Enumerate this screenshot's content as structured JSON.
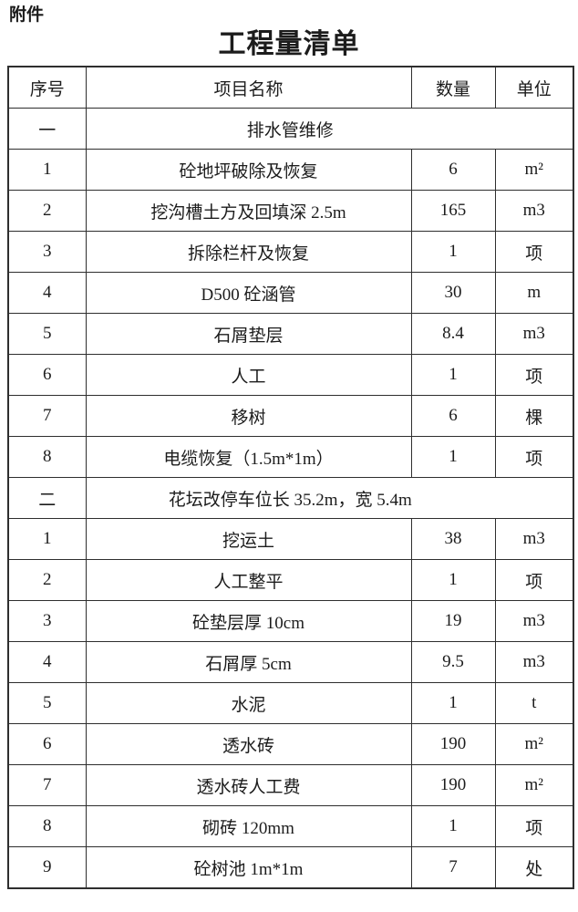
{
  "page": {
    "attachment_label": "附件",
    "title": "工程量清单"
  },
  "table": {
    "headers": [
      "序号",
      "项目名称",
      "数量",
      "单位"
    ],
    "sections": [
      {
        "index": "一",
        "title": "排水管维修",
        "rows": [
          {
            "no": "1",
            "name": "砼地坪破除及恢复",
            "qty": "6",
            "unit": "m²"
          },
          {
            "no": "2",
            "name": "挖沟槽土方及回填深 2.5m",
            "qty": "165",
            "unit": "m3"
          },
          {
            "no": "3",
            "name": "拆除栏杆及恢复",
            "qty": "1",
            "unit": "项"
          },
          {
            "no": "4",
            "name": "D500 砼涵管",
            "qty": "30",
            "unit": "m"
          },
          {
            "no": "5",
            "name": "石屑垫层",
            "qty": "8.4",
            "unit": "m3"
          },
          {
            "no": "6",
            "name": "人工",
            "qty": "1",
            "unit": "项"
          },
          {
            "no": "7",
            "name": "移树",
            "qty": "6",
            "unit": "棵"
          },
          {
            "no": "8",
            "name": "电缆恢复（1.5m*1m）",
            "qty": "1",
            "unit": "项"
          }
        ]
      },
      {
        "index": "二",
        "title": "花坛改停车位长 35.2m，宽 5.4m",
        "rows": [
          {
            "no": "1",
            "name": "挖运土",
            "qty": "38",
            "unit": "m3"
          },
          {
            "no": "2",
            "name": "人工整平",
            "qty": "1",
            "unit": "项"
          },
          {
            "no": "3",
            "name": "砼垫层厚 10cm",
            "qty": "19",
            "unit": "m3"
          },
          {
            "no": "4",
            "name": "石屑厚 5cm",
            "qty": "9.5",
            "unit": "m3"
          },
          {
            "no": "5",
            "name": "水泥",
            "qty": "1",
            "unit": "t"
          },
          {
            "no": "6",
            "name": "透水砖",
            "qty": "190",
            "unit": "m²"
          },
          {
            "no": "7",
            "name": "透水砖人工费",
            "qty": "190",
            "unit": "m²"
          },
          {
            "no": "8",
            "name": "砌砖 120mm",
            "qty": "1",
            "unit": "项"
          },
          {
            "no": "9",
            "name": "砼树池 1m*1m",
            "qty": "7",
            "unit": "处"
          }
        ]
      }
    ]
  }
}
